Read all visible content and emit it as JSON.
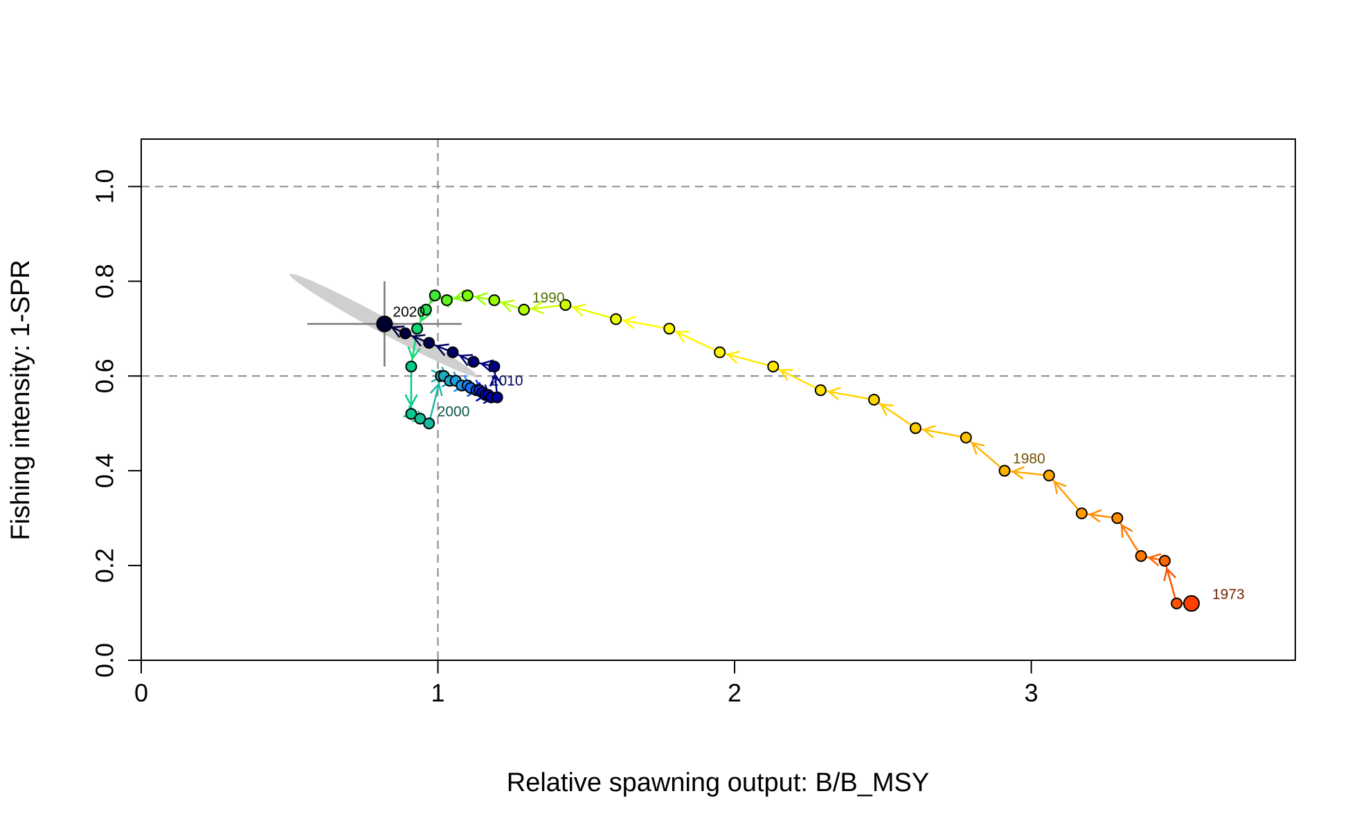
{
  "chart_data": {
    "type": "phase",
    "x_label": "Relative spawning output: B/B_MSY",
    "y_label": "Fishing intensity: 1-SPR",
    "xlim": [
      0,
      3.89
    ],
    "ylim": [
      0,
      1.1
    ],
    "xticks": [
      0,
      1,
      2,
      3
    ],
    "yticks": [
      {
        "value": 0,
        "label": "0.0"
      },
      0.2,
      0.4,
      0.6,
      0.8,
      {
        "value": 1,
        "label": "1.0"
      }
    ],
    "hlines": [
      0.6,
      1.0
    ],
    "vlines": [
      1
    ],
    "x": [
      3.54,
      3.49,
      3.45,
      3.37,
      3.29,
      3.17,
      3.06,
      2.91,
      2.78,
      2.61,
      2.47,
      2.29,
      2.13,
      1.95,
      1.78,
      1.6,
      1.43,
      1.29,
      1.19,
      1.1,
      1.03,
      0.99,
      0.96,
      0.93,
      0.91,
      0.91,
      0.94,
      0.97,
      1.01,
      1.02,
      1.04,
      1.06,
      1.08,
      1.1,
      1.11,
      1.13,
      1.14,
      1.15,
      1.16,
      1.17,
      1.18,
      1.2,
      1.19,
      1.12,
      1.05,
      0.97,
      0.89,
      0.82
    ],
    "values": [
      0.12,
      0.12,
      0.21,
      0.22,
      0.3,
      0.31,
      0.39,
      0.4,
      0.47,
      0.49,
      0.55,
      0.57,
      0.62,
      0.65,
      0.7,
      0.72,
      0.75,
      0.74,
      0.76,
      0.77,
      0.76,
      0.77,
      0.74,
      0.7,
      0.62,
      0.52,
      0.51,
      0.5,
      0.6,
      0.6,
      0.59,
      0.59,
      0.58,
      0.58,
      0.575,
      0.57,
      0.57,
      0.565,
      0.56,
      0.56,
      0.555,
      0.555,
      0.62,
      0.63,
      0.65,
      0.67,
      0.69,
      0.71
    ],
    "point_labels": [
      "1973",
      null,
      null,
      null,
      null,
      null,
      null,
      "1980",
      null,
      null,
      null,
      null,
      null,
      null,
      null,
      null,
      null,
      "1990",
      null,
      null,
      null,
      null,
      null,
      null,
      null,
      null,
      null,
      "2000",
      null,
      null,
      null,
      null,
      null,
      null,
      null,
      null,
      null,
      "2010",
      null,
      null,
      null,
      null,
      null,
      null,
      null,
      null,
      null,
      "2020"
    ],
    "colors": [
      "#ff4000",
      "#ff9a00",
      "#ffd000",
      "#ffff00",
      "#80ff00",
      "#00d080",
      "#20b0b0",
      "#1e90ff",
      "#0000cd",
      "#000080",
      "#000030"
    ],
    "crosshair": {
      "x": [
        0.56,
        1.08
      ],
      "y": [
        0.62,
        0.8
      ]
    },
    "ellipse_ends": [
      [
        0.5,
        0.815
      ],
      [
        1.13,
        0.6
      ]
    ]
  }
}
